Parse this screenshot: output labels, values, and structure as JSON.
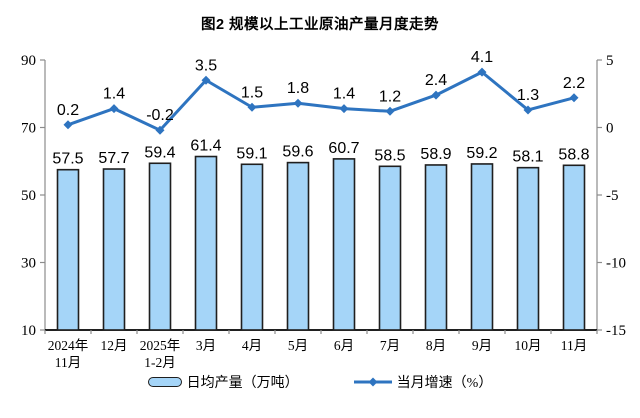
{
  "chart_data": {
    "type": "bar",
    "combo": "bar+line",
    "title": "图2 规模以上工业原油产量月度走势",
    "categories": [
      [
        "2024年",
        "11月"
      ],
      [
        "12月"
      ],
      [
        "2025年",
        "1-2月"
      ],
      [
        "3月"
      ],
      [
        "4月"
      ],
      [
        "5月"
      ],
      [
        "6月"
      ],
      [
        "7月"
      ],
      [
        "8月"
      ],
      [
        "9月"
      ],
      [
        "10月"
      ],
      [
        "11月"
      ]
    ],
    "series": [
      {
        "name": "日均产量（万吨）",
        "type": "bar",
        "axis": "left",
        "values": [
          57.5,
          57.7,
          59.4,
          61.4,
          59.1,
          59.6,
          60.7,
          58.5,
          58.9,
          59.2,
          58.1,
          58.8
        ],
        "fill_color": "#A5D5F8",
        "border_color": "#1f1f1f"
      },
      {
        "name": "当月增速（%）",
        "type": "line",
        "axis": "right",
        "values": [
          0.2,
          1.4,
          -0.2,
          3.5,
          1.5,
          1.8,
          1.4,
          1.2,
          2.4,
          4.1,
          1.3,
          2.2
        ],
        "color": "#2E74C0",
        "marker": "diamond"
      }
    ],
    "left_axis": {
      "min": 10,
      "max": 90,
      "ticks": [
        90,
        70,
        50,
        30,
        10
      ]
    },
    "right_axis": {
      "min": -15,
      "max": 5,
      "ticks": [
        5,
        0,
        -5,
        -10,
        -15
      ]
    },
    "grid": false,
    "legend_position": "bottom",
    "axis_line_color": "#8c8c8c",
    "bottom_axis_color": "#000000"
  }
}
